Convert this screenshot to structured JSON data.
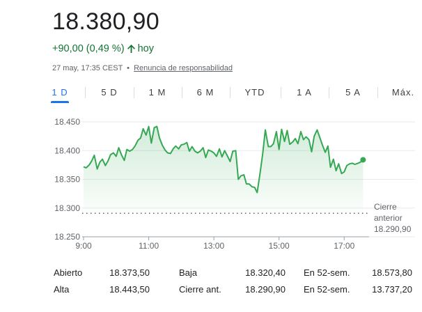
{
  "quote": {
    "price": "18.380,90",
    "change": "+90,00 (0,49 %)",
    "period": "hoy",
    "timestamp": "27 may, 17:35 CEST",
    "disclaimer": "Renuncia de responsabilidad",
    "change_color": "#137333",
    "arrow_icon": "up-arrow-icon"
  },
  "tabs": [
    "1 D",
    "5 D",
    "1 M",
    "6 M",
    "YTD",
    "1 A",
    "5 A",
    "Máx."
  ],
  "active_tab": "1 D",
  "accent_color": "#1a73e8",
  "chart_data": {
    "type": "area",
    "ylim": [
      18250,
      18450
    ],
    "yticks": [
      "18.450",
      "18.400",
      "18.350",
      "18.300",
      "18.250"
    ],
    "ytick_values": [
      18450,
      18400,
      18350,
      18300,
      18250
    ],
    "xticks": [
      "9:00",
      "11:00",
      "13:00",
      "15:00",
      "17:00"
    ],
    "xtick_values": [
      9,
      11,
      13,
      15,
      17
    ],
    "xlim": [
      9,
      17.7
    ],
    "previous_close": {
      "label_line1": "Cierre",
      "label_line2": "anterior",
      "value_text": "18.290,90",
      "value": 18290.9
    },
    "line_color": "#34a853",
    "series": [
      {
        "x": [
          9.0,
          9.08,
          9.17,
          9.25,
          9.33,
          9.42,
          9.5,
          9.58,
          9.67,
          9.75,
          9.83,
          9.92,
          10.0,
          10.08,
          10.17,
          10.25,
          10.33,
          10.42,
          10.5,
          10.58,
          10.67,
          10.75,
          10.83,
          10.92,
          11.0,
          11.08,
          11.17,
          11.25,
          11.33,
          11.42,
          11.5,
          11.58,
          11.67,
          11.75,
          11.83,
          11.92,
          12.0,
          12.08,
          12.17,
          12.25,
          12.33,
          12.42,
          12.5,
          12.58,
          12.67,
          12.75,
          12.83,
          12.92,
          13.0,
          13.08,
          13.17,
          13.25,
          13.33,
          13.42,
          13.5,
          13.58,
          13.67,
          13.75,
          13.83,
          13.92,
          14.0,
          14.08,
          14.17,
          14.25,
          14.33,
          14.42,
          14.5,
          14.58,
          14.67,
          14.75,
          14.83,
          14.92,
          15.0,
          15.08,
          15.17,
          15.25,
          15.33,
          15.42,
          15.5,
          15.58,
          15.67,
          15.75,
          15.83,
          15.92,
          16.0,
          16.08,
          16.17,
          16.25,
          16.33,
          16.42,
          16.5,
          16.58,
          16.67,
          16.75,
          16.83,
          16.92,
          17.0,
          17.08,
          17.17,
          17.25,
          17.33,
          17.42,
          17.5,
          17.58
        ],
        "y": [
          18372,
          18370,
          18375,
          18382,
          18392,
          18368,
          18380,
          18385,
          18374,
          18382,
          18393,
          18396,
          18390,
          18405,
          18392,
          18383,
          18402,
          18399,
          18402,
          18408,
          18418,
          18422,
          18438,
          18427,
          18442,
          18413,
          18440,
          18442,
          18422,
          18409,
          18401,
          18396,
          18395,
          18403,
          18408,
          18403,
          18410,
          18411,
          18414,
          18399,
          18407,
          18399,
          18396,
          18399,
          18405,
          18388,
          18401,
          18399,
          18396,
          18390,
          18403,
          18389,
          18400,
          18390,
          18381,
          18399,
          18400,
          18350,
          18356,
          18358,
          18342,
          18342,
          18337,
          18336,
          18327,
          18362,
          18395,
          18436,
          18407,
          18407,
          18412,
          18433,
          18402,
          18437,
          18416,
          18435,
          18411,
          18415,
          18421,
          18412,
          18433,
          18419,
          18424,
          18419,
          18398,
          18425,
          18436,
          18423,
          18410,
          18397,
          18408,
          18371,
          18385,
          18365,
          18377,
          18360,
          18363,
          18374,
          18377,
          18378,
          18376,
          18378,
          18380,
          18384
        ]
      }
    ]
  },
  "stats": [
    {
      "label": "Abierto",
      "value": "18.373,50"
    },
    {
      "label": "Alta",
      "value": "18.443,50"
    },
    {
      "label": "Baja",
      "value": "18.320,40"
    },
    {
      "label": "Cierre ant.",
      "value": "18.290,90"
    },
    {
      "label": "En 52-sem.",
      "value": "18.573,80"
    },
    {
      "label": "En 52-sem.",
      "value": "13.737,20"
    }
  ]
}
